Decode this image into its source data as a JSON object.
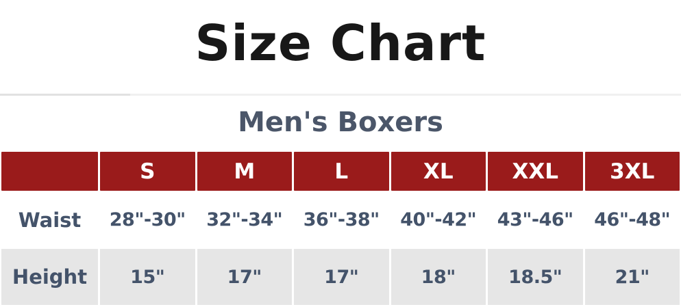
{
  "page": {
    "title": "Size Chart",
    "subtitle": "Men's Boxers"
  },
  "table": {
    "corner": "",
    "columns": [
      "S",
      "M",
      "L",
      "XL",
      "XXL",
      "3XL"
    ],
    "rows": [
      {
        "label": "Waist",
        "values": [
          "28\"-30\"",
          "32\"-34\"",
          "36\"-38\"",
          "40\"-42\"",
          "43\"-46\"",
          "46\"-48\""
        ]
      },
      {
        "label": "Height",
        "values": [
          "15\"",
          "17\"",
          "17\"",
          "18\"",
          "18.5\"",
          "21\""
        ]
      }
    ]
  },
  "colors": {
    "header_bg": "#9a1b1b",
    "text_accent": "#44536a",
    "alt_row_bg": "#e6e6e6",
    "title_color": "#181818"
  }
}
